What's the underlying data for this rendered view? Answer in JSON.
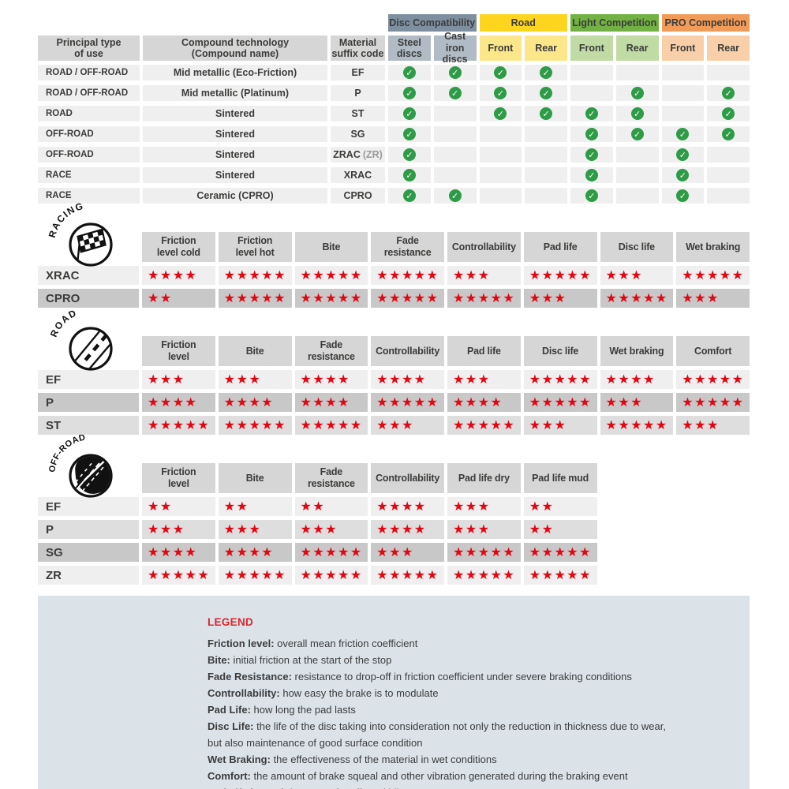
{
  "colors": {
    "ink": "#3c3c3b",
    "head_gray": "#d6d6d6",
    "row_light": "#efefef",
    "row_mid": "#dedede",
    "row_dark": "#c8c8c8",
    "accent_star": "#e30613",
    "check_green": "#2e9b47",
    "legend_bg": "#dbe3e9",
    "legend_title": "#d9262c"
  },
  "compat": {
    "headers": [
      "Principal type\nof use",
      "Compound technology\n(Compound name)",
      "Material\nsuffix code"
    ],
    "groups": [
      {
        "label": "Disc Compatibility",
        "header_color": "#7e8f9f",
        "sub_color": "#b1bbc5",
        "subs": [
          "Steel\ndiscs",
          "Cast iron\ndiscs"
        ]
      },
      {
        "label": "Road",
        "header_color": "#fdd51e",
        "sub_color": "#fbe68a",
        "subs": [
          "Front",
          "Rear"
        ]
      },
      {
        "label": "Light Competition",
        "header_color": "#72b244",
        "sub_color": "#c0dba4",
        "subs": [
          "Front",
          "Rear"
        ]
      },
      {
        "label": "PRO Competition",
        "header_color": "#f19b58",
        "sub_color": "#f8cfa8",
        "subs": [
          "Front",
          "Rear"
        ]
      }
    ],
    "rows": [
      {
        "use": "ROAD / OFF-ROAD",
        "tech": "Mid metallic (Eco-Friction)",
        "code": "EF",
        "code_suffix": "",
        "checks": [
          1,
          1,
          1,
          1,
          0,
          0,
          0,
          0
        ]
      },
      {
        "use": "ROAD / OFF-ROAD",
        "tech": "Mid metallic (Platinum)",
        "code": "P",
        "code_suffix": "",
        "checks": [
          1,
          1,
          1,
          1,
          0,
          1,
          0,
          1
        ]
      },
      {
        "use": "ROAD",
        "tech": "Sintered",
        "code": "ST",
        "code_suffix": "",
        "checks": [
          1,
          0,
          1,
          1,
          1,
          1,
          0,
          1
        ]
      },
      {
        "use": "OFF-ROAD",
        "tech": "Sintered",
        "code": "SG",
        "code_suffix": "",
        "checks": [
          1,
          0,
          0,
          0,
          1,
          1,
          1,
          1
        ]
      },
      {
        "use": "OFF-ROAD",
        "tech": "Sintered",
        "code": "ZRAC",
        "code_suffix": "(ZR)",
        "checks": [
          1,
          0,
          0,
          0,
          1,
          0,
          1,
          0
        ]
      },
      {
        "use": "RACE",
        "tech": "Sintered",
        "code": "XRAC",
        "code_suffix": "",
        "checks": [
          1,
          0,
          0,
          0,
          1,
          0,
          1,
          0
        ]
      },
      {
        "use": "RACE",
        "tech": "Ceramic (CPRO)",
        "code": "CPRO",
        "code_suffix": "",
        "checks": [
          1,
          1,
          0,
          0,
          1,
          0,
          1,
          0
        ]
      }
    ]
  },
  "rating_tables": [
    {
      "id": "racing",
      "icon_label": "RACING",
      "columns": [
        "Friction\nlevel cold",
        "Friction\nlevel hot",
        "Bite",
        "Fade\nresistance",
        "Controllability",
        "Pad life",
        "Disc life",
        "Wet braking"
      ],
      "rows": [
        {
          "code": "XRAC",
          "shade": "light",
          "stars": [
            4,
            5,
            5,
            5,
            3,
            5,
            3,
            5
          ]
        },
        {
          "code": "CPRO",
          "shade": "dark",
          "stars": [
            2,
            5,
            5,
            5,
            5,
            3,
            5,
            3
          ]
        }
      ]
    },
    {
      "id": "road",
      "icon_label": "ROAD",
      "columns": [
        "Friction\nlevel",
        "Bite",
        "Fade\nresistance",
        "Controllability",
        "Pad life",
        "Disc life",
        "Wet braking",
        "Comfort"
      ],
      "rows": [
        {
          "code": "EF",
          "shade": "light",
          "stars": [
            3,
            3,
            4,
            4,
            3,
            5,
            4,
            5
          ]
        },
        {
          "code": "P",
          "shade": "dark",
          "stars": [
            4,
            4,
            4,
            5,
            4,
            5,
            3,
            5
          ]
        },
        {
          "code": "ST",
          "shade": "mid",
          "stars": [
            5,
            5,
            5,
            3,
            5,
            3,
            5,
            3
          ]
        }
      ]
    },
    {
      "id": "offroad",
      "icon_label": "OFF-ROAD",
      "columns": [
        "Friction\nlevel",
        "Bite",
        "Fade\nresistance",
        "Controllability",
        "Pad life dry",
        "Pad life mud"
      ],
      "rows": [
        {
          "code": "EF",
          "shade": "light",
          "stars": [
            2,
            2,
            2,
            4,
            3,
            2
          ]
        },
        {
          "code": "P",
          "shade": "mid",
          "stars": [
            3,
            3,
            3,
            4,
            3,
            2
          ]
        },
        {
          "code": "SG",
          "shade": "dark",
          "stars": [
            4,
            4,
            5,
            3,
            5,
            5
          ]
        },
        {
          "code": "ZR",
          "shade": "light",
          "stars": [
            5,
            5,
            5,
            5,
            5,
            5
          ]
        }
      ]
    }
  ],
  "legend": {
    "title": "LEGEND",
    "items": [
      {
        "term": "Friction level",
        "desc": "overall mean friction coefficient"
      },
      {
        "term": "Bite",
        "desc": "initial friction at the start of the stop"
      },
      {
        "term": "Fade Resistance",
        "desc": "resistance to drop-off in friction coefficient under severe braking conditions"
      },
      {
        "term": "Controllability",
        "desc": "how easy the brake is to modulate"
      },
      {
        "term": "Pad Life",
        "desc": "how long the pad lasts"
      },
      {
        "term": "Disc Life",
        "desc": "the life of the disc taking into consideration not only the reduction in thickness due to wear,"
      },
      {
        "term": "",
        "desc": "but also maintenance of good surface condition"
      },
      {
        "term": "Wet Braking",
        "desc": "the effectiveness of the material in wet conditions"
      },
      {
        "term": "Comfort",
        "desc": "the amount of brake squeal and other vibration generated during the braking event"
      },
      {
        "term": "Pad Life in mud",
        "desc": "important for off-road bikes"
      }
    ]
  }
}
